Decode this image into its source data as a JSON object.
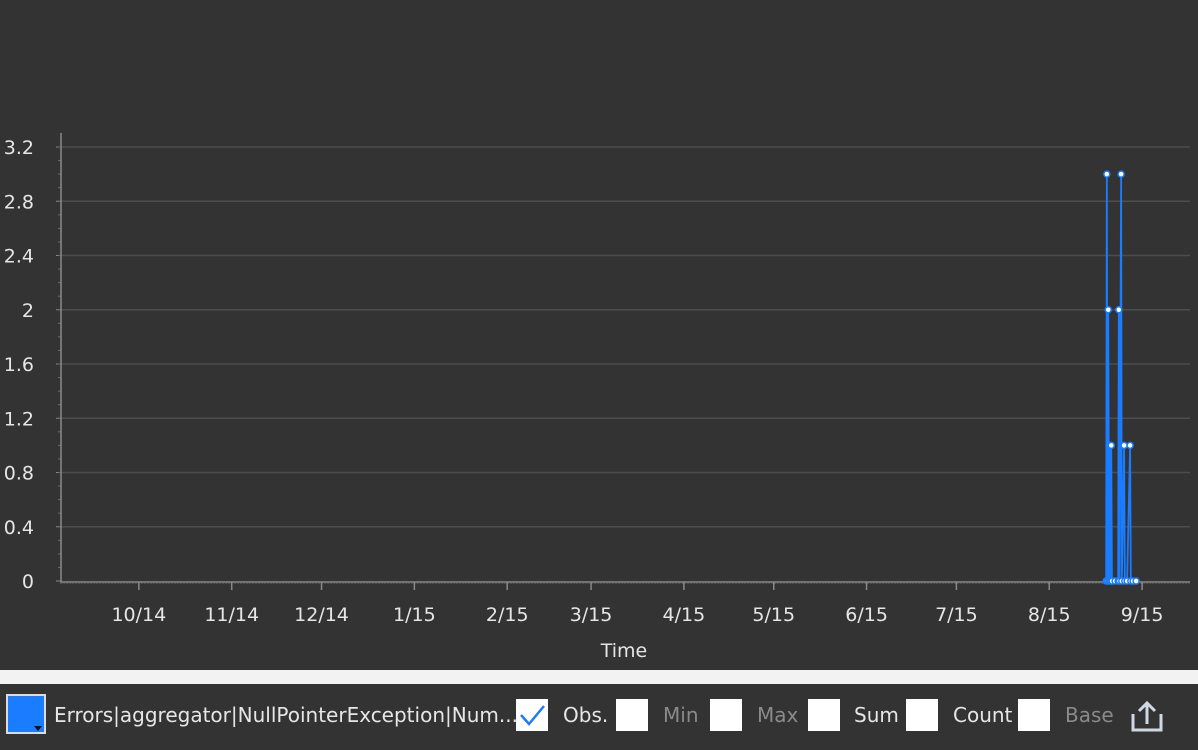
{
  "chart_data": {
    "type": "line",
    "title": "",
    "xlabel": "Time",
    "ylabel": "",
    "x_ticks": [
      "10/14",
      "11/14",
      "12/14",
      "1/15",
      "2/15",
      "3/15",
      "4/15",
      "5/15",
      "6/15",
      "7/15",
      "8/15",
      "9/15"
    ],
    "y_ticks": [
      "0",
      "0.4",
      "0.8",
      "1.2",
      "1.6",
      "2",
      "2.4",
      "2.8",
      "3.2"
    ],
    "ylim": [
      0,
      3.3
    ],
    "xlim": [
      "2014-09-05",
      "2015-09-17"
    ],
    "grid": true,
    "color": "#1a7cff",
    "series": [
      {
        "name": "Errors|aggregator|NullPointerException|Num...",
        "points": [
          {
            "x": "2015-08-20",
            "y": 0
          },
          {
            "x": "2015-08-20",
            "y": 3
          },
          {
            "x": "2015-08-20",
            "y": 0
          },
          {
            "x": "2015-08-20",
            "y": 2
          },
          {
            "x": "2015-08-21",
            "y": 0
          },
          {
            "x": "2015-08-21",
            "y": 1
          },
          {
            "x": "2015-08-21",
            "y": 0
          },
          {
            "x": "2015-08-21",
            "y": 1
          },
          {
            "x": "2015-08-21",
            "y": 0
          },
          {
            "x": "2015-08-22",
            "y": 0
          },
          {
            "x": "2015-08-23",
            "y": 0
          },
          {
            "x": "2015-08-24",
            "y": 0
          },
          {
            "x": "2015-08-24",
            "y": 2
          },
          {
            "x": "2015-08-24",
            "y": 0
          },
          {
            "x": "2015-08-25",
            "y": 3
          },
          {
            "x": "2015-08-25",
            "y": 0
          },
          {
            "x": "2015-08-26",
            "y": 1
          },
          {
            "x": "2015-08-26",
            "y": 0
          },
          {
            "x": "2015-08-27",
            "y": 0
          },
          {
            "x": "2015-08-28",
            "y": 1
          },
          {
            "x": "2015-08-28",
            "y": 0
          },
          {
            "x": "2015-08-29",
            "y": 0
          },
          {
            "x": "2015-08-30",
            "y": 0
          }
        ]
      }
    ]
  },
  "legend": {
    "swatch_color": "#1a7cff",
    "series_label": "Errors|aggregator|NullPointerException|Num...",
    "options": [
      {
        "label": "Obs.",
        "checked": true
      },
      {
        "label": "Min",
        "checked": false
      },
      {
        "label": "Max",
        "checked": false
      },
      {
        "label": "Sum",
        "checked": false
      },
      {
        "label": "Count",
        "checked": false
      },
      {
        "label": "Base",
        "checked": false
      }
    ],
    "export_icon": "export-icon"
  }
}
